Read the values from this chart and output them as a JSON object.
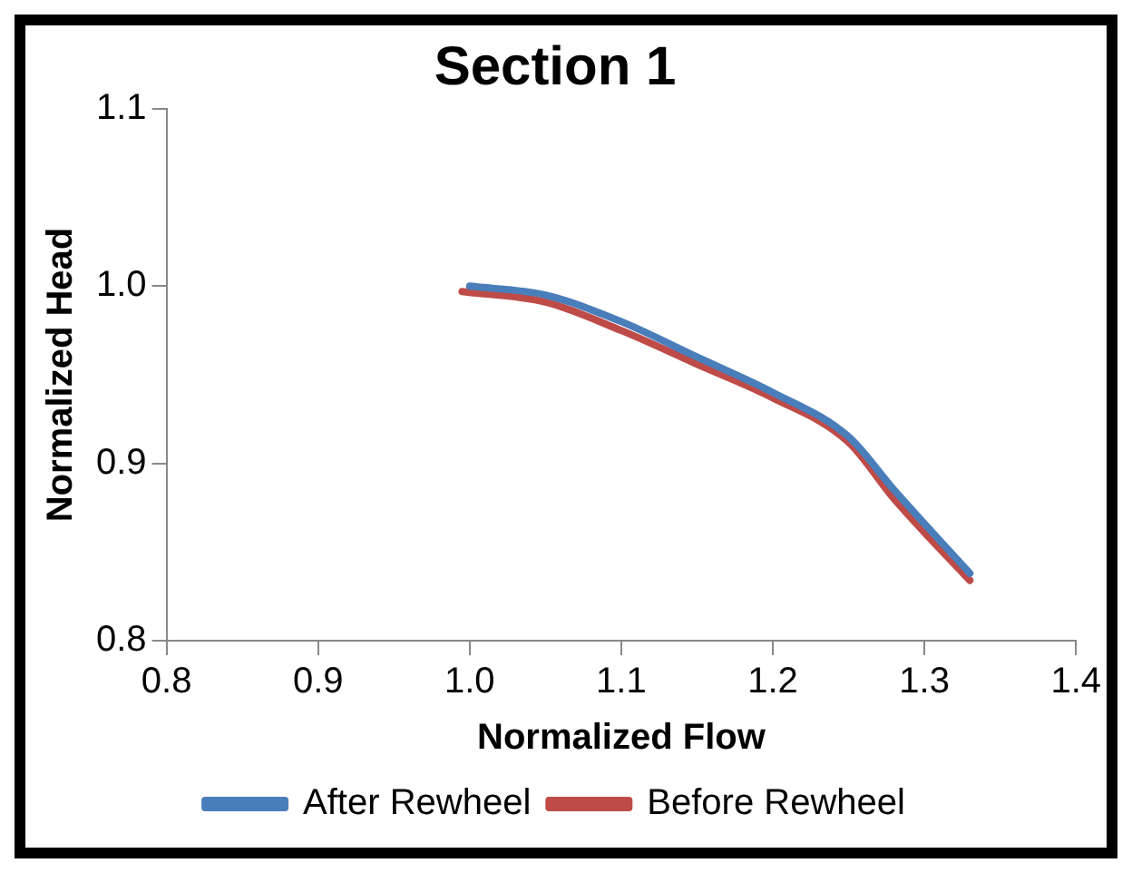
{
  "chart_data": {
    "type": "line",
    "title": "Section 1",
    "xlabel": "Normalized Flow",
    "ylabel": "Normalized Head",
    "series": [
      {
        "name": "After Rewheel",
        "color": "#4a7ebb",
        "x": [
          1.0,
          1.05,
          1.1,
          1.15,
          1.2,
          1.25,
          1.28,
          1.33
        ],
        "values": [
          1.0,
          0.995,
          0.98,
          0.96,
          0.94,
          0.915,
          0.885,
          0.838
        ]
      },
      {
        "name": "Before Rewheel",
        "color": "#be4b48",
        "x": [
          0.995,
          1.05,
          1.1,
          1.15,
          1.2,
          1.25,
          1.28,
          1.33
        ],
        "values": [
          0.997,
          0.991,
          0.975,
          0.956,
          0.937,
          0.912,
          0.88,
          0.834
        ]
      }
    ],
    "xlim": [
      0.8,
      1.4
    ],
    "xticks": [
      {
        "value": 0.8,
        "label": "0.8"
      },
      {
        "value": 0.9,
        "label": "0.9"
      },
      {
        "value": 1.0,
        "label": "1.0"
      },
      {
        "value": 1.1,
        "label": "1.1"
      },
      {
        "value": 1.2,
        "label": "1.2"
      },
      {
        "value": 1.3,
        "label": "1.3"
      },
      {
        "value": 1.4,
        "label": "1.4"
      }
    ],
    "ylim": [
      0.8,
      1.1
    ],
    "yticks": [
      {
        "value": 0.8,
        "label": "0.8"
      },
      {
        "value": 0.9,
        "label": "0.9"
      },
      {
        "value": 1.0,
        "label": "1.0"
      },
      {
        "value": 1.1,
        "label": "1.1"
      }
    ],
    "grid": false,
    "legend": "bottom",
    "marker": "none",
    "line_style": "solid"
  }
}
